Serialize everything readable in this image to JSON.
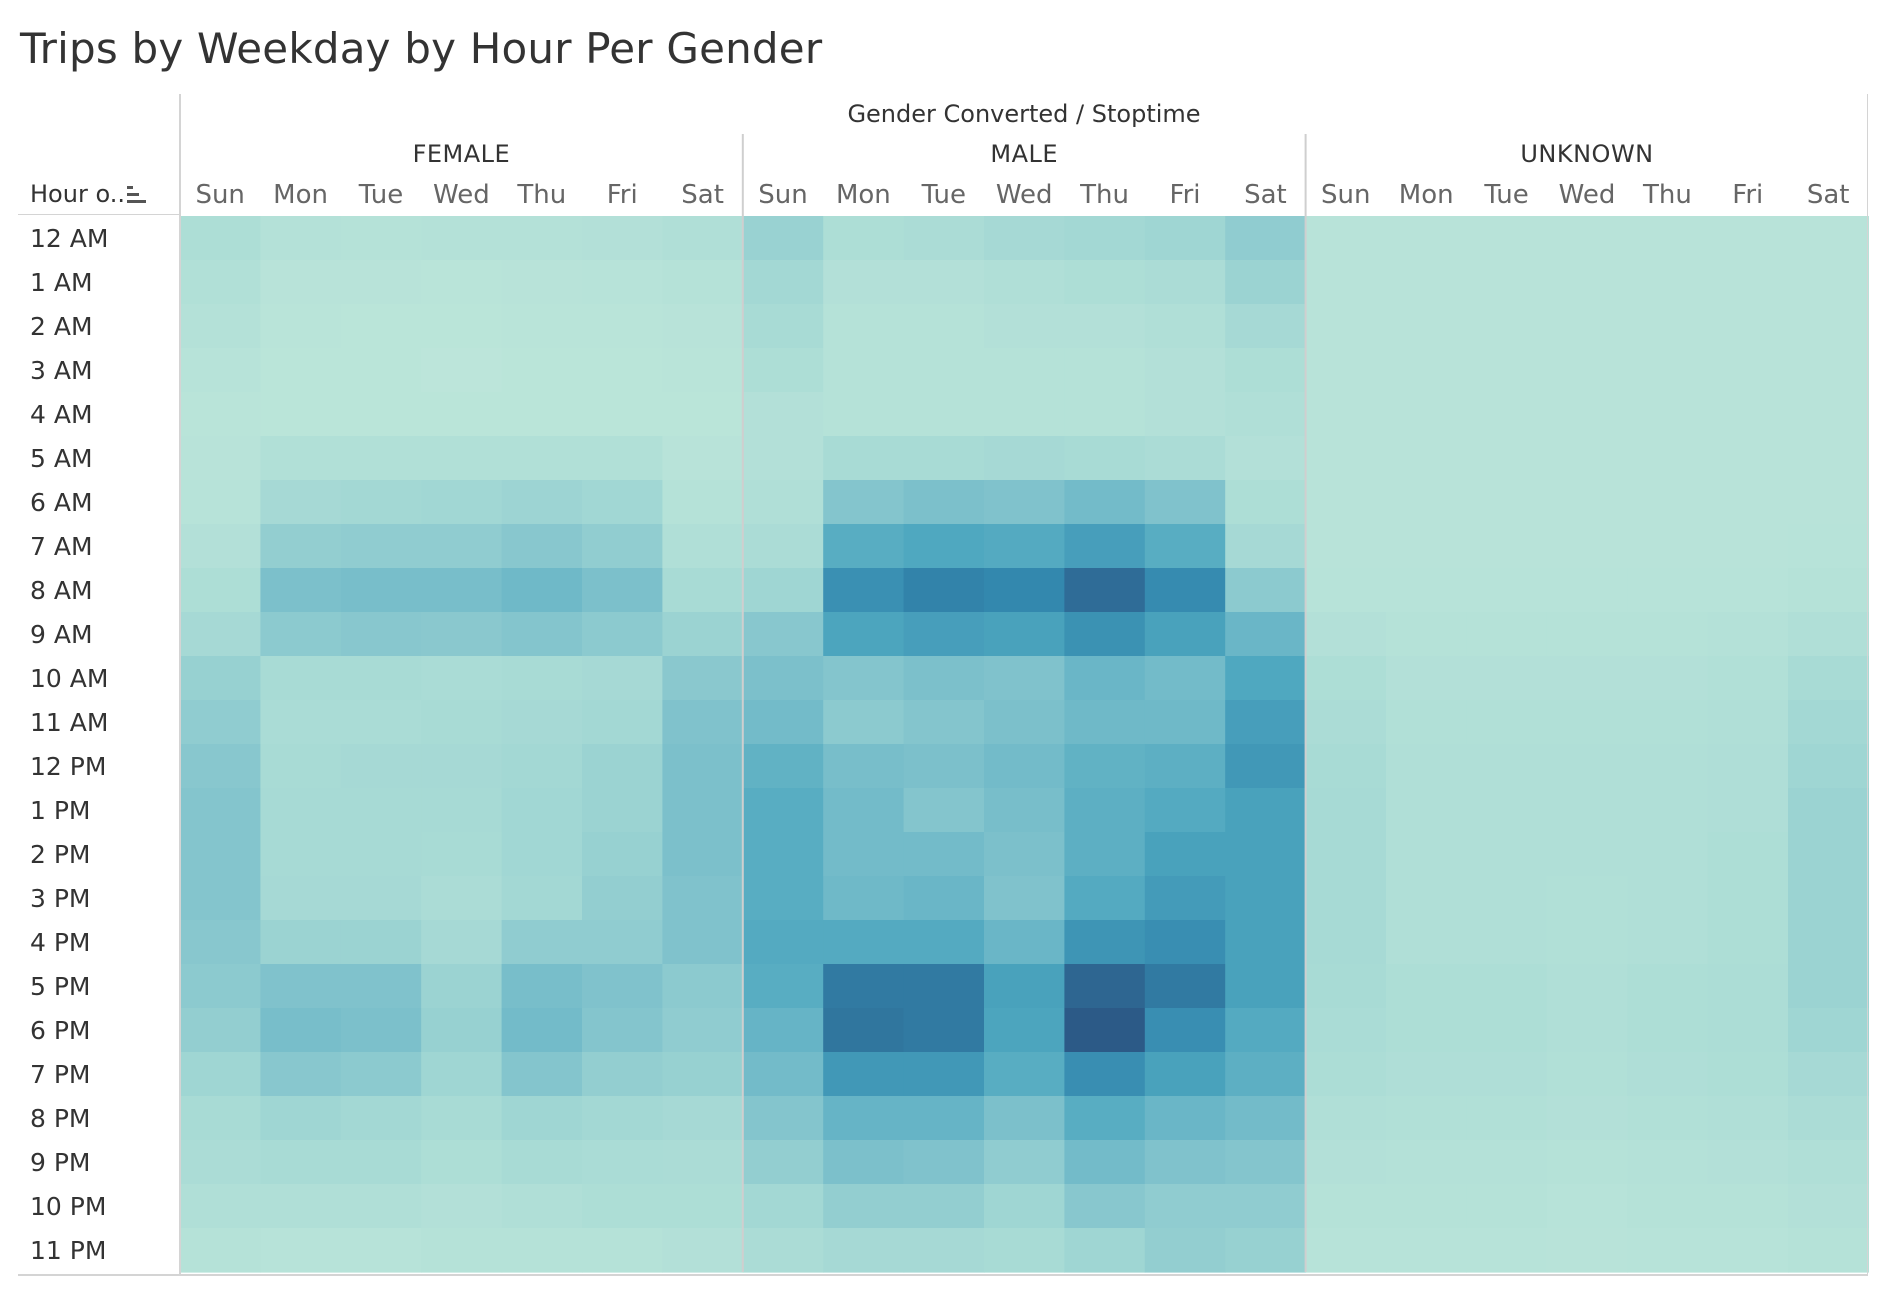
{
  "title": "Trips by Weekday by Hour Per Gender",
  "column_super_header": "Gender Converted / Stoptime",
  "row_header_title": "Hour o..",
  "icons": {
    "sort": "sort-descending-icon"
  },
  "colors": {
    "low": "#bde6da",
    "high": "#2c5a87"
  },
  "chart_data": {
    "type": "heatmap",
    "title": "Trips by Weekday by Hour Per Gender",
    "column_header": "Gender Converted / Stoptime",
    "row_header": "Hour o..",
    "groups": [
      "FEMALE",
      "MALE",
      "UNKNOWN"
    ],
    "days": [
      "Sun",
      "Mon",
      "Tue",
      "Wed",
      "Thu",
      "Fri",
      "Sat"
    ],
    "hours": [
      "12 AM",
      "1 AM",
      "2 AM",
      "3 AM",
      "4 AM",
      "5 AM",
      "6 AM",
      "7 AM",
      "8 AM",
      "9 AM",
      "10 AM",
      "11 AM",
      "12 PM",
      "1 PM",
      "2 PM",
      "3 PM",
      "4 PM",
      "5 PM",
      "6 PM",
      "7 PM",
      "8 PM",
      "9 PM",
      "10 PM",
      "11 PM"
    ],
    "value_scale": "relative intensity (0 = lightest, 100 = darkest)",
    "values": {
      "FEMALE": [
        [
          12,
          7,
          6,
          7,
          7,
          8,
          10
        ],
        [
          9,
          4,
          4,
          3,
          4,
          5,
          6
        ],
        [
          7,
          3,
          2,
          2,
          3,
          3,
          4
        ],
        [
          5,
          2,
          2,
          1,
          2,
          2,
          3
        ],
        [
          3,
          2,
          2,
          2,
          2,
          2,
          2
        ],
        [
          4,
          9,
          9,
          9,
          9,
          9,
          4
        ],
        [
          5,
          18,
          20,
          21,
          23,
          21,
          6
        ],
        [
          8,
          28,
          30,
          30,
          34,
          29,
          10
        ],
        [
          12,
          40,
          42,
          42,
          46,
          40,
          16
        ],
        [
          18,
          32,
          34,
          33,
          36,
          32,
          24
        ],
        [
          26,
          16,
          16,
          15,
          16,
          18,
          33
        ],
        [
          30,
          15,
          15,
          16,
          18,
          20,
          38
        ],
        [
          34,
          16,
          18,
          18,
          20,
          24,
          40
        ],
        [
          36,
          17,
          17,
          17,
          21,
          24,
          40
        ],
        [
          36,
          17,
          17,
          16,
          21,
          26,
          40
        ],
        [
          36,
          18,
          18,
          14,
          20,
          28,
          38
        ],
        [
          34,
          24,
          24,
          18,
          30,
          30,
          38
        ],
        [
          32,
          38,
          38,
          24,
          42,
          38,
          32
        ],
        [
          28,
          42,
          40,
          26,
          44,
          36,
          30
        ],
        [
          22,
          34,
          32,
          22,
          36,
          28,
          26
        ],
        [
          16,
          22,
          20,
          16,
          22,
          20,
          18
        ],
        [
          14,
          16,
          16,
          12,
          16,
          15,
          14
        ],
        [
          10,
          10,
          10,
          8,
          10,
          12,
          12
        ],
        [
          6,
          5,
          5,
          6,
          6,
          6,
          8
        ]
      ],
      "MALE": [
        [
          25,
          12,
          14,
          18,
          20,
          22,
          30
        ],
        [
          20,
          8,
          8,
          10,
          12,
          14,
          24
        ],
        [
          16,
          6,
          6,
          8,
          8,
          10,
          18
        ],
        [
          12,
          6,
          6,
          6,
          6,
          8,
          12
        ],
        [
          8,
          6,
          6,
          6,
          6,
          8,
          10
        ],
        [
          8,
          16,
          16,
          18,
          16,
          14,
          8
        ],
        [
          10,
          36,
          40,
          38,
          44,
          38,
          12
        ],
        [
          14,
          56,
          60,
          58,
          66,
          56,
          18
        ],
        [
          22,
          75,
          82,
          80,
          92,
          78,
          32
        ],
        [
          34,
          62,
          66,
          64,
          74,
          64,
          48
        ],
        [
          40,
          36,
          40,
          38,
          48,
          44,
          60
        ],
        [
          44,
          32,
          36,
          40,
          46,
          46,
          66
        ],
        [
          52,
          42,
          40,
          44,
          52,
          54,
          70
        ],
        [
          56,
          44,
          36,
          42,
          54,
          58,
          64
        ],
        [
          56,
          44,
          44,
          40,
          54,
          64,
          64
        ],
        [
          56,
          46,
          48,
          38,
          58,
          68,
          64
        ],
        [
          58,
          58,
          58,
          48,
          72,
          76,
          64
        ],
        [
          56,
          86,
          86,
          64,
          95,
          86,
          64
        ],
        [
          50,
          88,
          86,
          62,
          100,
          76,
          58
        ],
        [
          44,
          70,
          70,
          56,
          76,
          64,
          54
        ],
        [
          36,
          50,
          50,
          40,
          56,
          48,
          44
        ],
        [
          28,
          40,
          38,
          30,
          44,
          38,
          36
        ],
        [
          20,
          28,
          28,
          22,
          34,
          30,
          30
        ],
        [
          14,
          18,
          18,
          16,
          22,
          28,
          26
        ]
      ],
      "UNKNOWN": [
        [
          4,
          4,
          4,
          4,
          4,
          4,
          4
        ],
        [
          4,
          4,
          4,
          4,
          4,
          4,
          4
        ],
        [
          4,
          4,
          4,
          4,
          4,
          4,
          4
        ],
        [
          4,
          4,
          4,
          4,
          4,
          4,
          4
        ],
        [
          4,
          4,
          4,
          4,
          4,
          4,
          4
        ],
        [
          4,
          4,
          4,
          4,
          4,
          4,
          4
        ],
        [
          4,
          4,
          4,
          4,
          4,
          4,
          4
        ],
        [
          4,
          4,
          4,
          4,
          4,
          4,
          5
        ],
        [
          5,
          5,
          5,
          5,
          5,
          5,
          6
        ],
        [
          8,
          6,
          6,
          6,
          6,
          7,
          10
        ],
        [
          12,
          8,
          8,
          8,
          8,
          9,
          16
        ],
        [
          14,
          9,
          9,
          9,
          9,
          10,
          20
        ],
        [
          16,
          10,
          10,
          10,
          10,
          11,
          22
        ],
        [
          17,
          10,
          10,
          10,
          10,
          11,
          24
        ],
        [
          17,
          10,
          10,
          10,
          10,
          12,
          24
        ],
        [
          17,
          10,
          10,
          9,
          10,
          12,
          24
        ],
        [
          17,
          10,
          10,
          9,
          10,
          12,
          24
        ],
        [
          16,
          12,
          12,
          10,
          12,
          13,
          24
        ],
        [
          15,
          12,
          12,
          10,
          12,
          13,
          22
        ],
        [
          13,
          11,
          11,
          9,
          11,
          12,
          18
        ],
        [
          10,
          9,
          9,
          8,
          9,
          10,
          14
        ],
        [
          8,
          7,
          7,
          6,
          7,
          8,
          10
        ],
        [
          6,
          6,
          6,
          5,
          6,
          6,
          8
        ],
        [
          5,
          5,
          5,
          4,
          5,
          5,
          6
        ]
      ]
    }
  }
}
